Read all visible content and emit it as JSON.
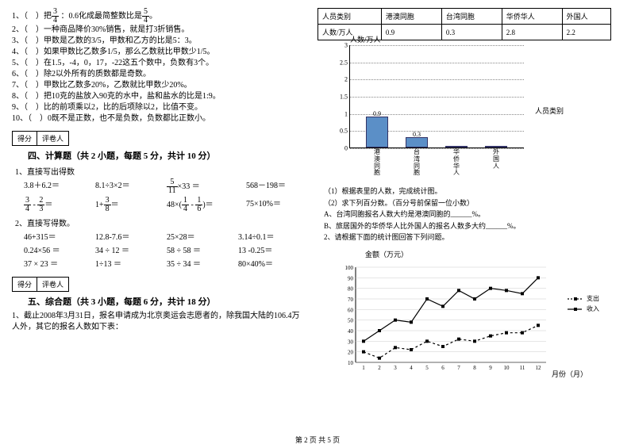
{
  "judgments": [
    {
      "n": "1",
      "t": "）把",
      "mid": "：0.6化成最简整数比是",
      "end": "。",
      "f1": {
        "n": "3",
        "d": "4"
      },
      "f2": {
        "n": "5",
        "d": "4"
      }
    },
    {
      "n": "2",
      "t": "）一种商品降价30%销售，就是打3折销售。"
    },
    {
      "n": "3",
      "t": "）甲数是乙数的3/5，甲数和乙方的比是5：3。"
    },
    {
      "n": "4",
      "t": "）如果甲数比乙数多1/5，那么乙数就比甲数少1/5。"
    },
    {
      "n": "5",
      "t": "）在1.5，-4，0，17，-22这五个数中，负数有3个。"
    },
    {
      "n": "6",
      "t": "）除2以外所有的质数都是奇数。"
    },
    {
      "n": "7",
      "t": "）甲数比乙数多20%，乙数就比甲数少20%。"
    },
    {
      "n": "8",
      "t": "）把10克的盐放入90克的水中，盐和盐水的比是1:9。"
    },
    {
      "n": "9",
      "t": "）比的前项乘以2，比的后项除以2，比值不变。"
    },
    {
      "n": "10",
      "t": "）0既不是正数，也不是负数，负数都比正数小。"
    }
  ],
  "score_labels": {
    "a": "得分",
    "b": "评卷人"
  },
  "sec4": {
    "title": "四、计算题（共 2 小题，每题 5 分，共计 10 分）",
    "sub1": "1、直接写出得数"
  },
  "calc1": [
    {
      "a": "3.8＋6.2＝",
      "b": "8.1÷3×2＝",
      "c": "×33 ＝",
      "d": "568－198＝",
      "cf": {
        "n": "5",
        "d": "11"
      }
    },
    {
      "a": "",
      "b": "＝",
      "c": "＝",
      "d": "75×10%＝",
      "af1": {
        "n": "3",
        "d": "4"
      },
      "af2": {
        "n": "2",
        "d": "3"
      },
      "bf": {
        "n": "3",
        "d": "8"
      },
      "cf1": {
        "n": "1",
        "d": "4"
      },
      "cf2": {
        "n": "1",
        "d": "6"
      },
      "apre": "",
      "amid": " - ",
      "bpre": "1+",
      "cpre": "48×(",
      "cmid": " - ",
      "cend": ")＝"
    }
  ],
  "calc2_title": "2、直接写得数。",
  "calc2": [
    [
      "46+315＝",
      "12.8-7.6＝",
      "25×28＝",
      "3.14÷0.1＝"
    ],
    [
      "0.24×56 ＝",
      "34 ÷ 12 ＝",
      "58 ÷ 58 ＝",
      "13 -0.25＝"
    ],
    [
      "37 × 23 ＝",
      "1÷13 ＝",
      "35 ÷ 34 ＝",
      "80×40%＝"
    ]
  ],
  "sec5": {
    "title": "五、综合题（共 3 小题，每题 6 分，共计 18 分）",
    "sub1": "1、截止2008年3月31日，报名申请成为北京奥运会志愿者的，除我国大陆的106.4万人外，其它的报名人数如下表："
  },
  "table": {
    "headers": [
      "人员类别",
      "港澳同胞",
      "台湾同胞",
      "华侨华人",
      "外国人"
    ],
    "row": [
      "人数/万人",
      "0.9",
      "0.3",
      "2.8",
      "2.2"
    ]
  },
  "bar": {
    "ytitle": "人数/万人",
    "xtitle": "人员类别",
    "ymax": 3,
    "yticks": [
      "0",
      "0.5",
      "1",
      "1.5",
      "2",
      "2.5",
      "3"
    ],
    "bars": [
      {
        "label": "港\n澳\n同\n胞",
        "val": 0.9,
        "show": "0.9",
        "color": "#5b8fc7"
      },
      {
        "label": "台\n湾\n同\n胞",
        "val": 0.3,
        "show": "0.3",
        "color": "#5b8fc7"
      },
      {
        "label": "华\n侨\n华\n人",
        "val": 0,
        "show": "",
        "color": "#5b8fc7"
      },
      {
        "label": "外\n国\n人",
        "val": 0,
        "show": "",
        "color": "#5b8fc7"
      }
    ]
  },
  "qs": [
    "（1）根据表里的人数，完成统计图。",
    "（2）求下列百分数。（百分号前保留一位小数）",
    "A、台湾同胞报名人数大约是港澳同胞的______%。",
    "B、旅居国外的华侨华人比外国人的报名人数多大约______%。",
    "2、请根据下面的统计图回答下列问题。"
  ],
  "line": {
    "ytitle": "金额（万元）",
    "xtitle": "月份（月）",
    "yticks": [
      "10",
      "20",
      "30",
      "40",
      "50",
      "60",
      "70",
      "80",
      "90",
      "100"
    ],
    "xticks": [
      "1",
      "2",
      "3",
      "4",
      "5",
      "6",
      "7",
      "8",
      "9",
      "10",
      "11",
      "12"
    ],
    "legend": [
      {
        "lbl": "支出",
        "dash": true
      },
      {
        "lbl": "收入",
        "dash": false
      }
    ],
    "series": [
      {
        "dash": true,
        "pts": [
          20,
          14,
          24,
          22,
          30,
          25,
          32,
          30,
          35,
          38,
          38,
          45
        ]
      },
      {
        "dash": false,
        "pts": [
          30,
          40,
          50,
          48,
          70,
          63,
          78,
          70,
          80,
          78,
          75,
          90
        ]
      }
    ],
    "ymin": 10,
    "ymax": 100
  },
  "footer": "第 2 页 共 5 页"
}
